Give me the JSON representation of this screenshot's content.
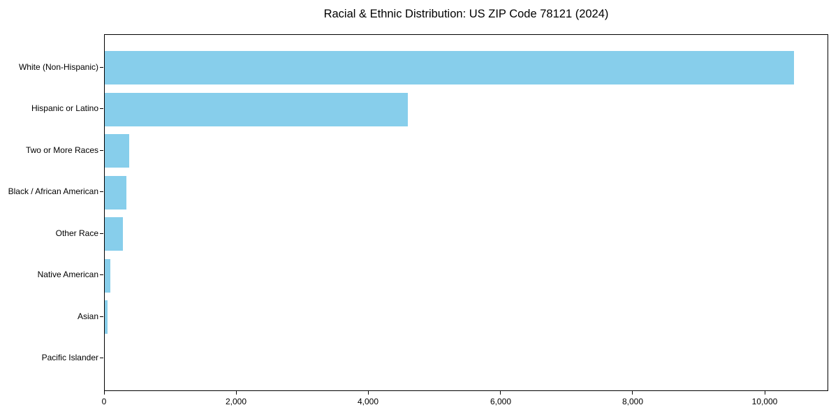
{
  "chart_data": {
    "type": "bar",
    "orientation": "horizontal",
    "title": "Racial & Ethnic Distribution: US ZIP Code 78121 (2024)",
    "xlabel": "",
    "ylabel": "",
    "categories": [
      "White (Non-Hispanic)",
      "Hispanic or Latino",
      "Two or More Races",
      "Black / African American",
      "Other Race",
      "Native American",
      "Asian",
      "Pacific Islander"
    ],
    "values": [
      10430,
      4590,
      370,
      330,
      275,
      80,
      40,
      0
    ],
    "bar_color": "#87CEEB",
    "xlim": [
      0,
      10960
    ],
    "x_ticks": [
      {
        "value": 0,
        "label": "0"
      },
      {
        "value": 2000,
        "label": "2,000"
      },
      {
        "value": 4000,
        "label": "4,000"
      },
      {
        "value": 6000,
        "label": "6,000"
      },
      {
        "value": 8000,
        "label": "8,000"
      },
      {
        "value": 10000,
        "label": "10,000"
      }
    ],
    "grid": false,
    "legend": null
  }
}
